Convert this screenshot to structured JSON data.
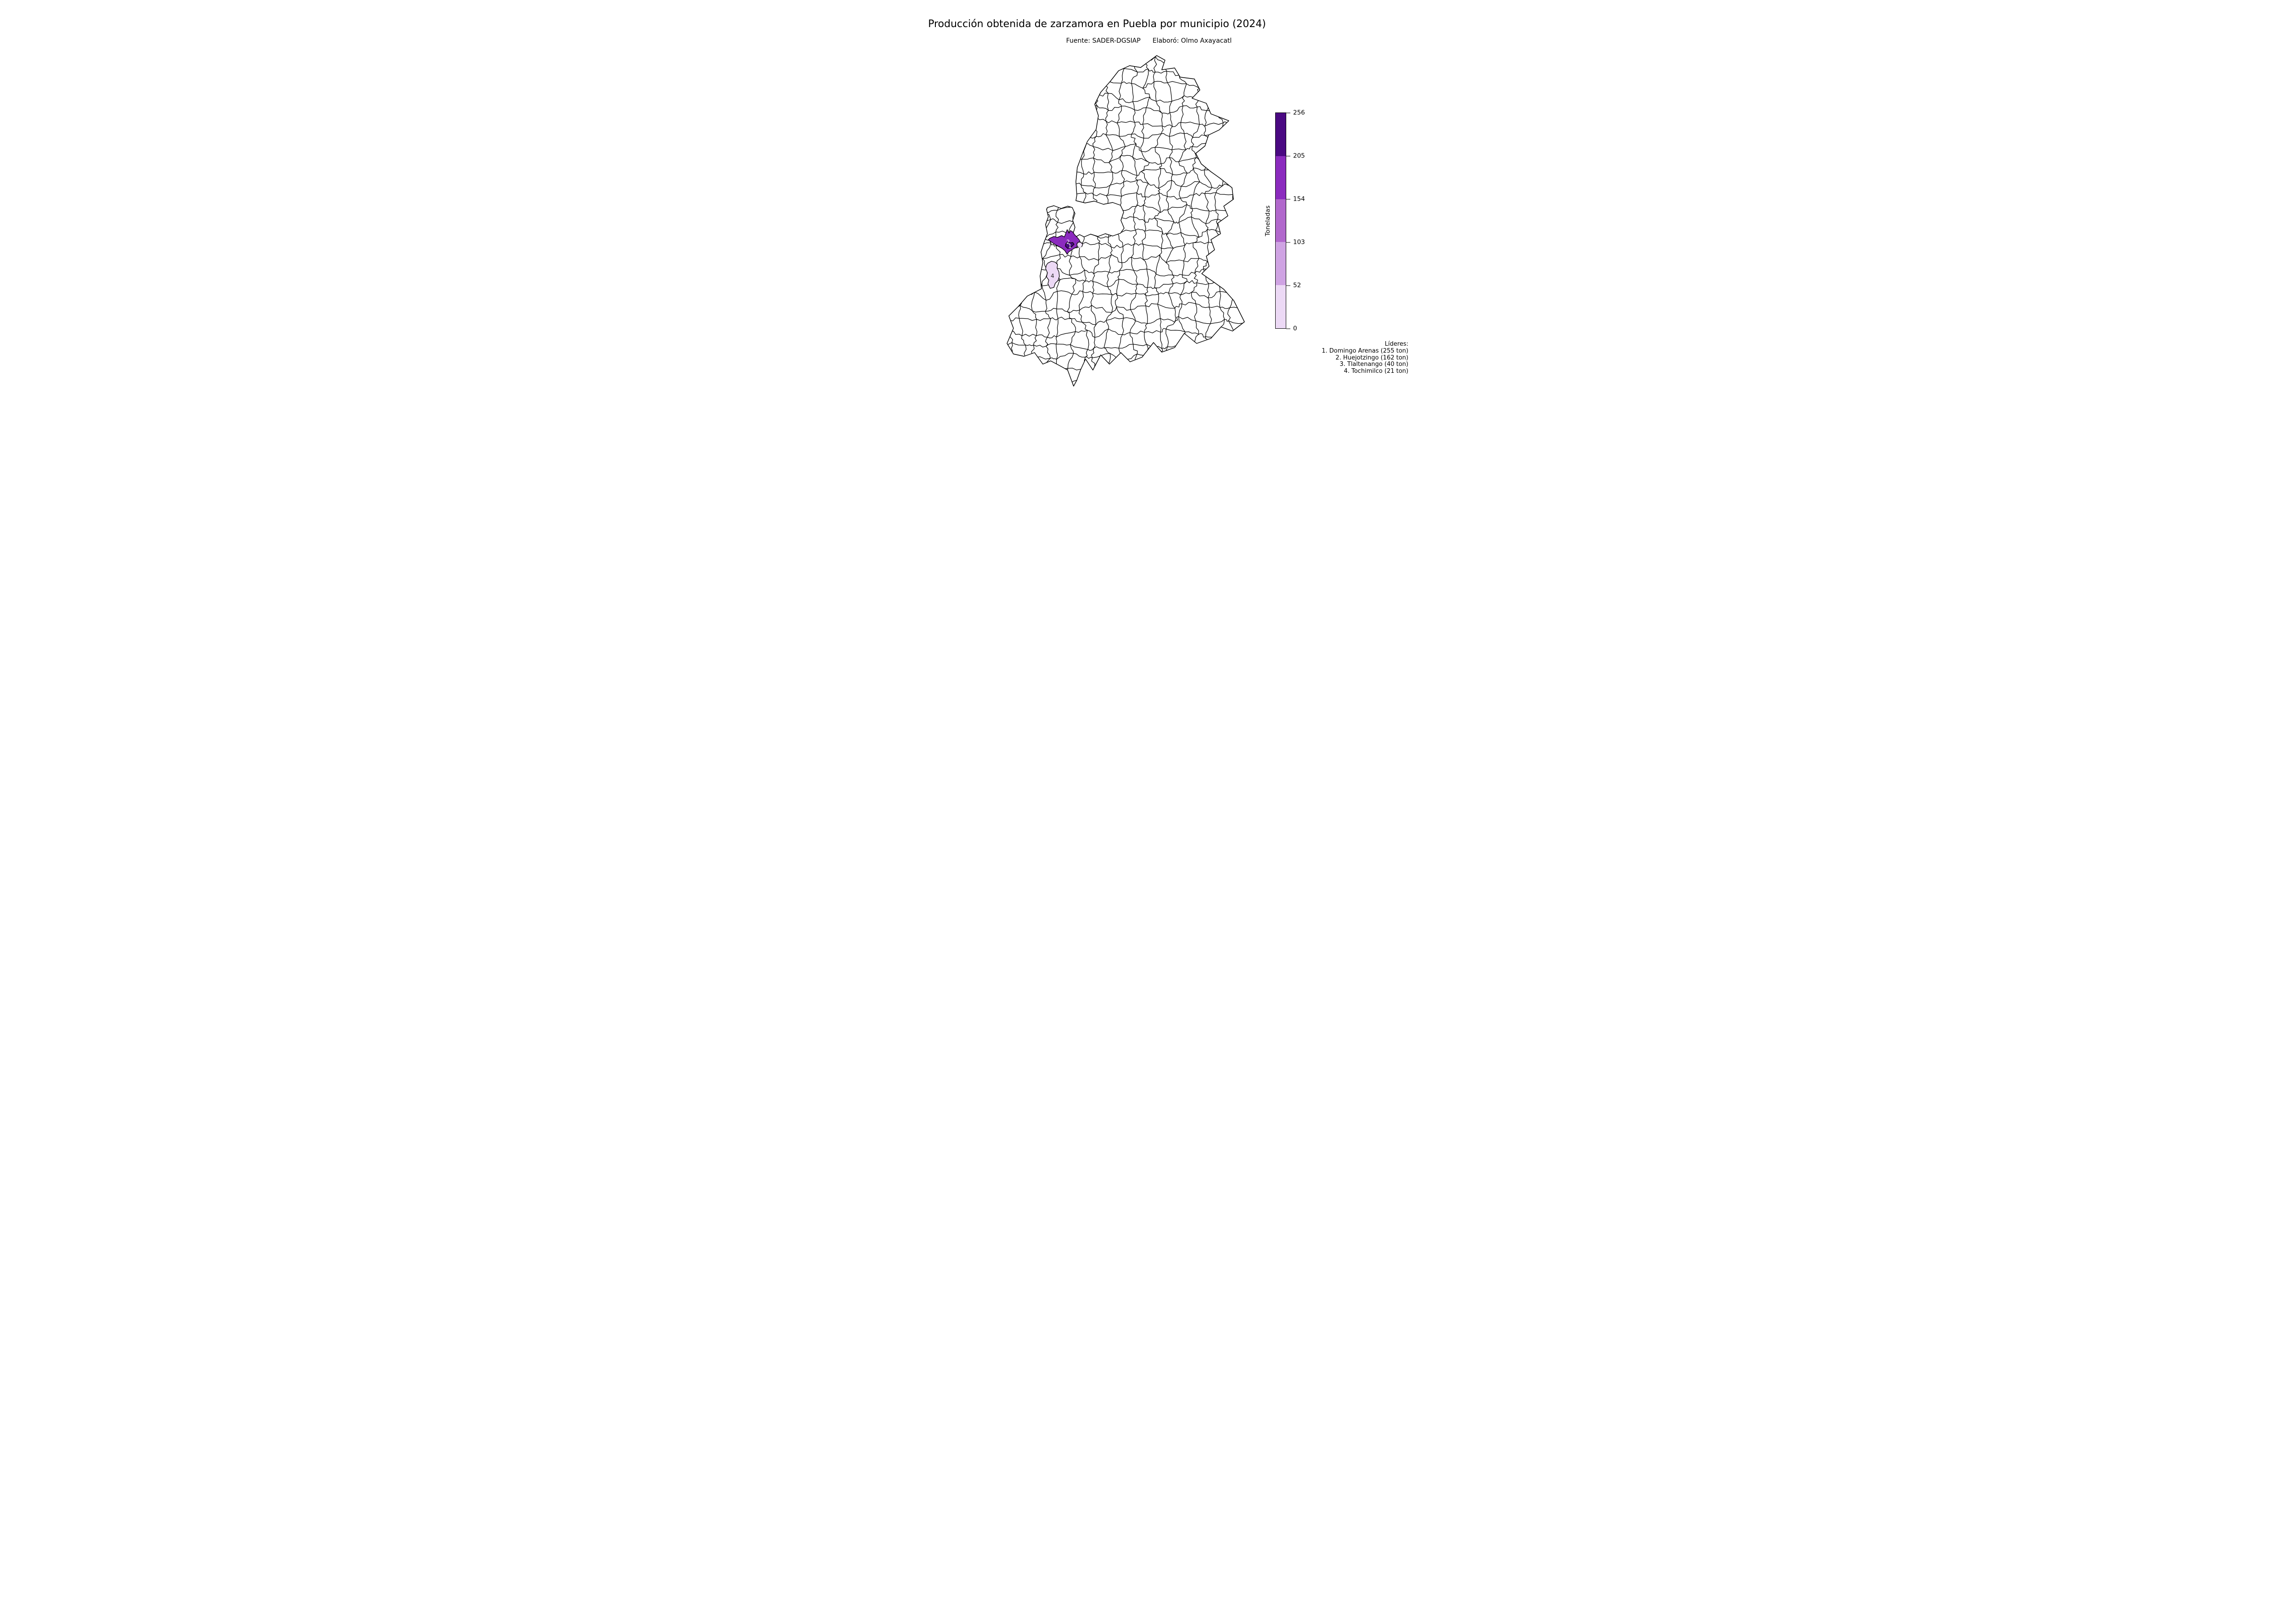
{
  "title": "Producción obtenida de zarzamora en Puebla por municipio (2024)",
  "subtitle": {
    "source": "Fuente: SADER-DGSIAP",
    "author": "Elaboró: Olmo Axayacatl"
  },
  "colorbar": {
    "label": "Toneladas",
    "ticks": [
      "256",
      "205",
      "154",
      "103",
      "52",
      "0"
    ],
    "bins": [
      0,
      52,
      103,
      154,
      205,
      256
    ],
    "colors_bottom_to_top": [
      "#ecd9f5",
      "#cfa3e3",
      "#b168cc",
      "#8b2bbe",
      "#4a0982"
    ]
  },
  "map": {
    "regions": [
      {
        "rank": "1",
        "name": "Domingo Arenas",
        "tons": 255,
        "color": "#4a0982",
        "label_color": "#ffffff"
      },
      {
        "rank": "2",
        "name": "Huejotzingo",
        "tons": 162,
        "color": "#8b2bbe",
        "label_color": "#ffffff"
      },
      {
        "rank": "3",
        "name": "Tlaltenango",
        "tons": 40,
        "color": "#ecd9f5",
        "label_color": "#ffffff"
      },
      {
        "rank": "4",
        "name": "Tochimilco",
        "tons": 21,
        "color": "#ecd9f5",
        "label_color": "#222222"
      }
    ],
    "boundary_color": "#000000",
    "municipality_fill": "#ffffff"
  },
  "leaders": {
    "heading": "Líderes:",
    "items": [
      {
        "rank": 1,
        "name": "Domingo Arenas",
        "tons": 255,
        "label": "1. Domingo Arenas (255 ton)"
      },
      {
        "rank": 2,
        "name": "Huejotzingo",
        "tons": 162,
        "label": "2. Huejotzingo (162 ton)"
      },
      {
        "rank": 3,
        "name": "Tlaltenango",
        "tons": 40,
        "label": "3. Tlaltenango (40 ton)"
      },
      {
        "rank": 4,
        "name": "Tochimilco",
        "tons": 21,
        "label": "4. Tochimilco (21 ton)"
      }
    ]
  },
  "chart_data": {
    "type": "choropleth",
    "title": "Producción obtenida de zarzamora en Puebla por municipio (2024)",
    "subtitle_source": "Fuente: SADER-DGSIAP",
    "subtitle_author": "Elaboró: Olmo Axayacatl",
    "unit": "Toneladas",
    "colorbar_label": "Toneladas",
    "colorbar_ticks": [
      256,
      205,
      154,
      103,
      52,
      0
    ],
    "colorbar_bins": [
      0,
      52,
      103,
      154,
      205,
      256
    ],
    "colorbar_segment_colors_low_to_high": [
      "#ecd9f5",
      "#cfa3e3",
      "#b168cc",
      "#8b2bbe",
      "#4a0982"
    ],
    "data": [
      {
        "municipio": "Domingo Arenas",
        "toneladas": 255,
        "rank": 1
      },
      {
        "municipio": "Huejotzingo",
        "toneladas": 162,
        "rank": 2
      },
      {
        "municipio": "Tlaltenango",
        "toneladas": 40,
        "rank": 3
      },
      {
        "municipio": "Tochimilco",
        "toneladas": 21,
        "rank": 4
      }
    ],
    "legend_position": "right",
    "annotation_block": "Líderes: lista de 4 municipios, alineada a la derecha, abajo a la derecha"
  }
}
